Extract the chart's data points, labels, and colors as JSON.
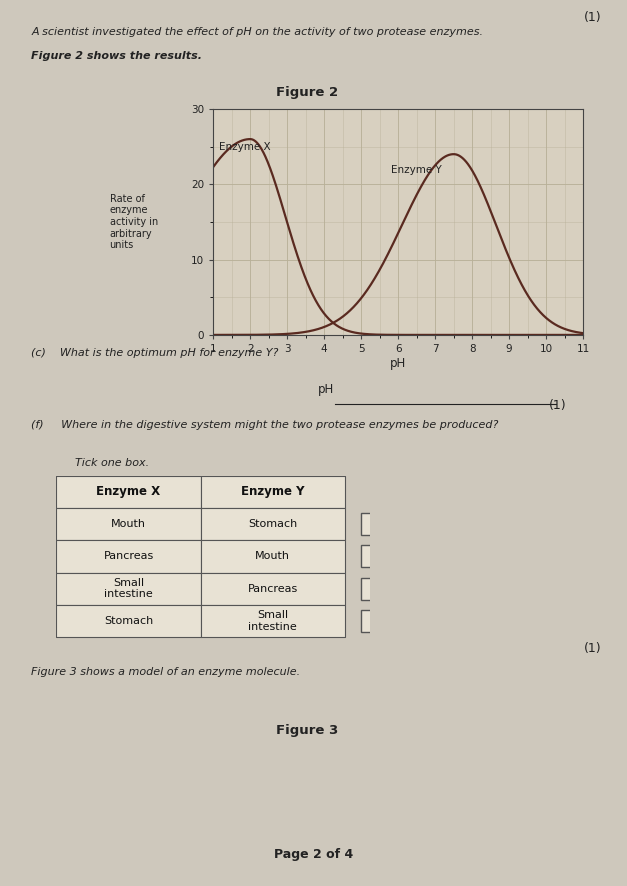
{
  "page_bg": "#cec8bc",
  "chart_bg": "#d8d0c0",
  "title_text": "A scientist investigated the effect of pH on the activity of two protease enzymes.",
  "figure2_label": "Figure 2",
  "fig2_shows": "Figure 2 shows the results.",
  "ylabel_lines": [
    "Rate of",
    "enzyme",
    "activity in",
    "arbitrary",
    "units"
  ],
  "xlabel": "pH",
  "xlim": [
    1,
    11
  ],
  "ylim": [
    0,
    30
  ],
  "yticks": [
    0,
    10,
    20,
    30
  ],
  "xticks": [
    1,
    2,
    3,
    4,
    5,
    6,
    7,
    8,
    9,
    10,
    11
  ],
  "curve_color": "#5a2a20",
  "enzyme_x_label": "Enzyme X",
  "enzyme_y_label": "Enzyme Y",
  "question_c": "(c)    What is the optimum pH for enzyme Y?",
  "mark_1a": "(1)",
  "question_f": "(f)     Where in the digestive system might the two protease enzymes be produced?",
  "tick_one_box": "Tick one box.",
  "table_headers": [
    "Enzyme X",
    "Enzyme Y"
  ],
  "table_rows": [
    [
      "Mouth",
      "Stomach"
    ],
    [
      "Pancreas",
      "Mouth"
    ],
    [
      "Small\nintestine",
      "Pancreas"
    ],
    [
      "Stomach",
      "Small\nintestine"
    ]
  ],
  "mark_1b": "(1)",
  "figure3_text": "Figure 3 shows a model of an enzyme molecule.",
  "figure3_label": "Figure 3",
  "page_footer": "Page 2 of 4",
  "grid_color": "#b8b098",
  "spine_color": "#444444",
  "text_color": "#222222"
}
